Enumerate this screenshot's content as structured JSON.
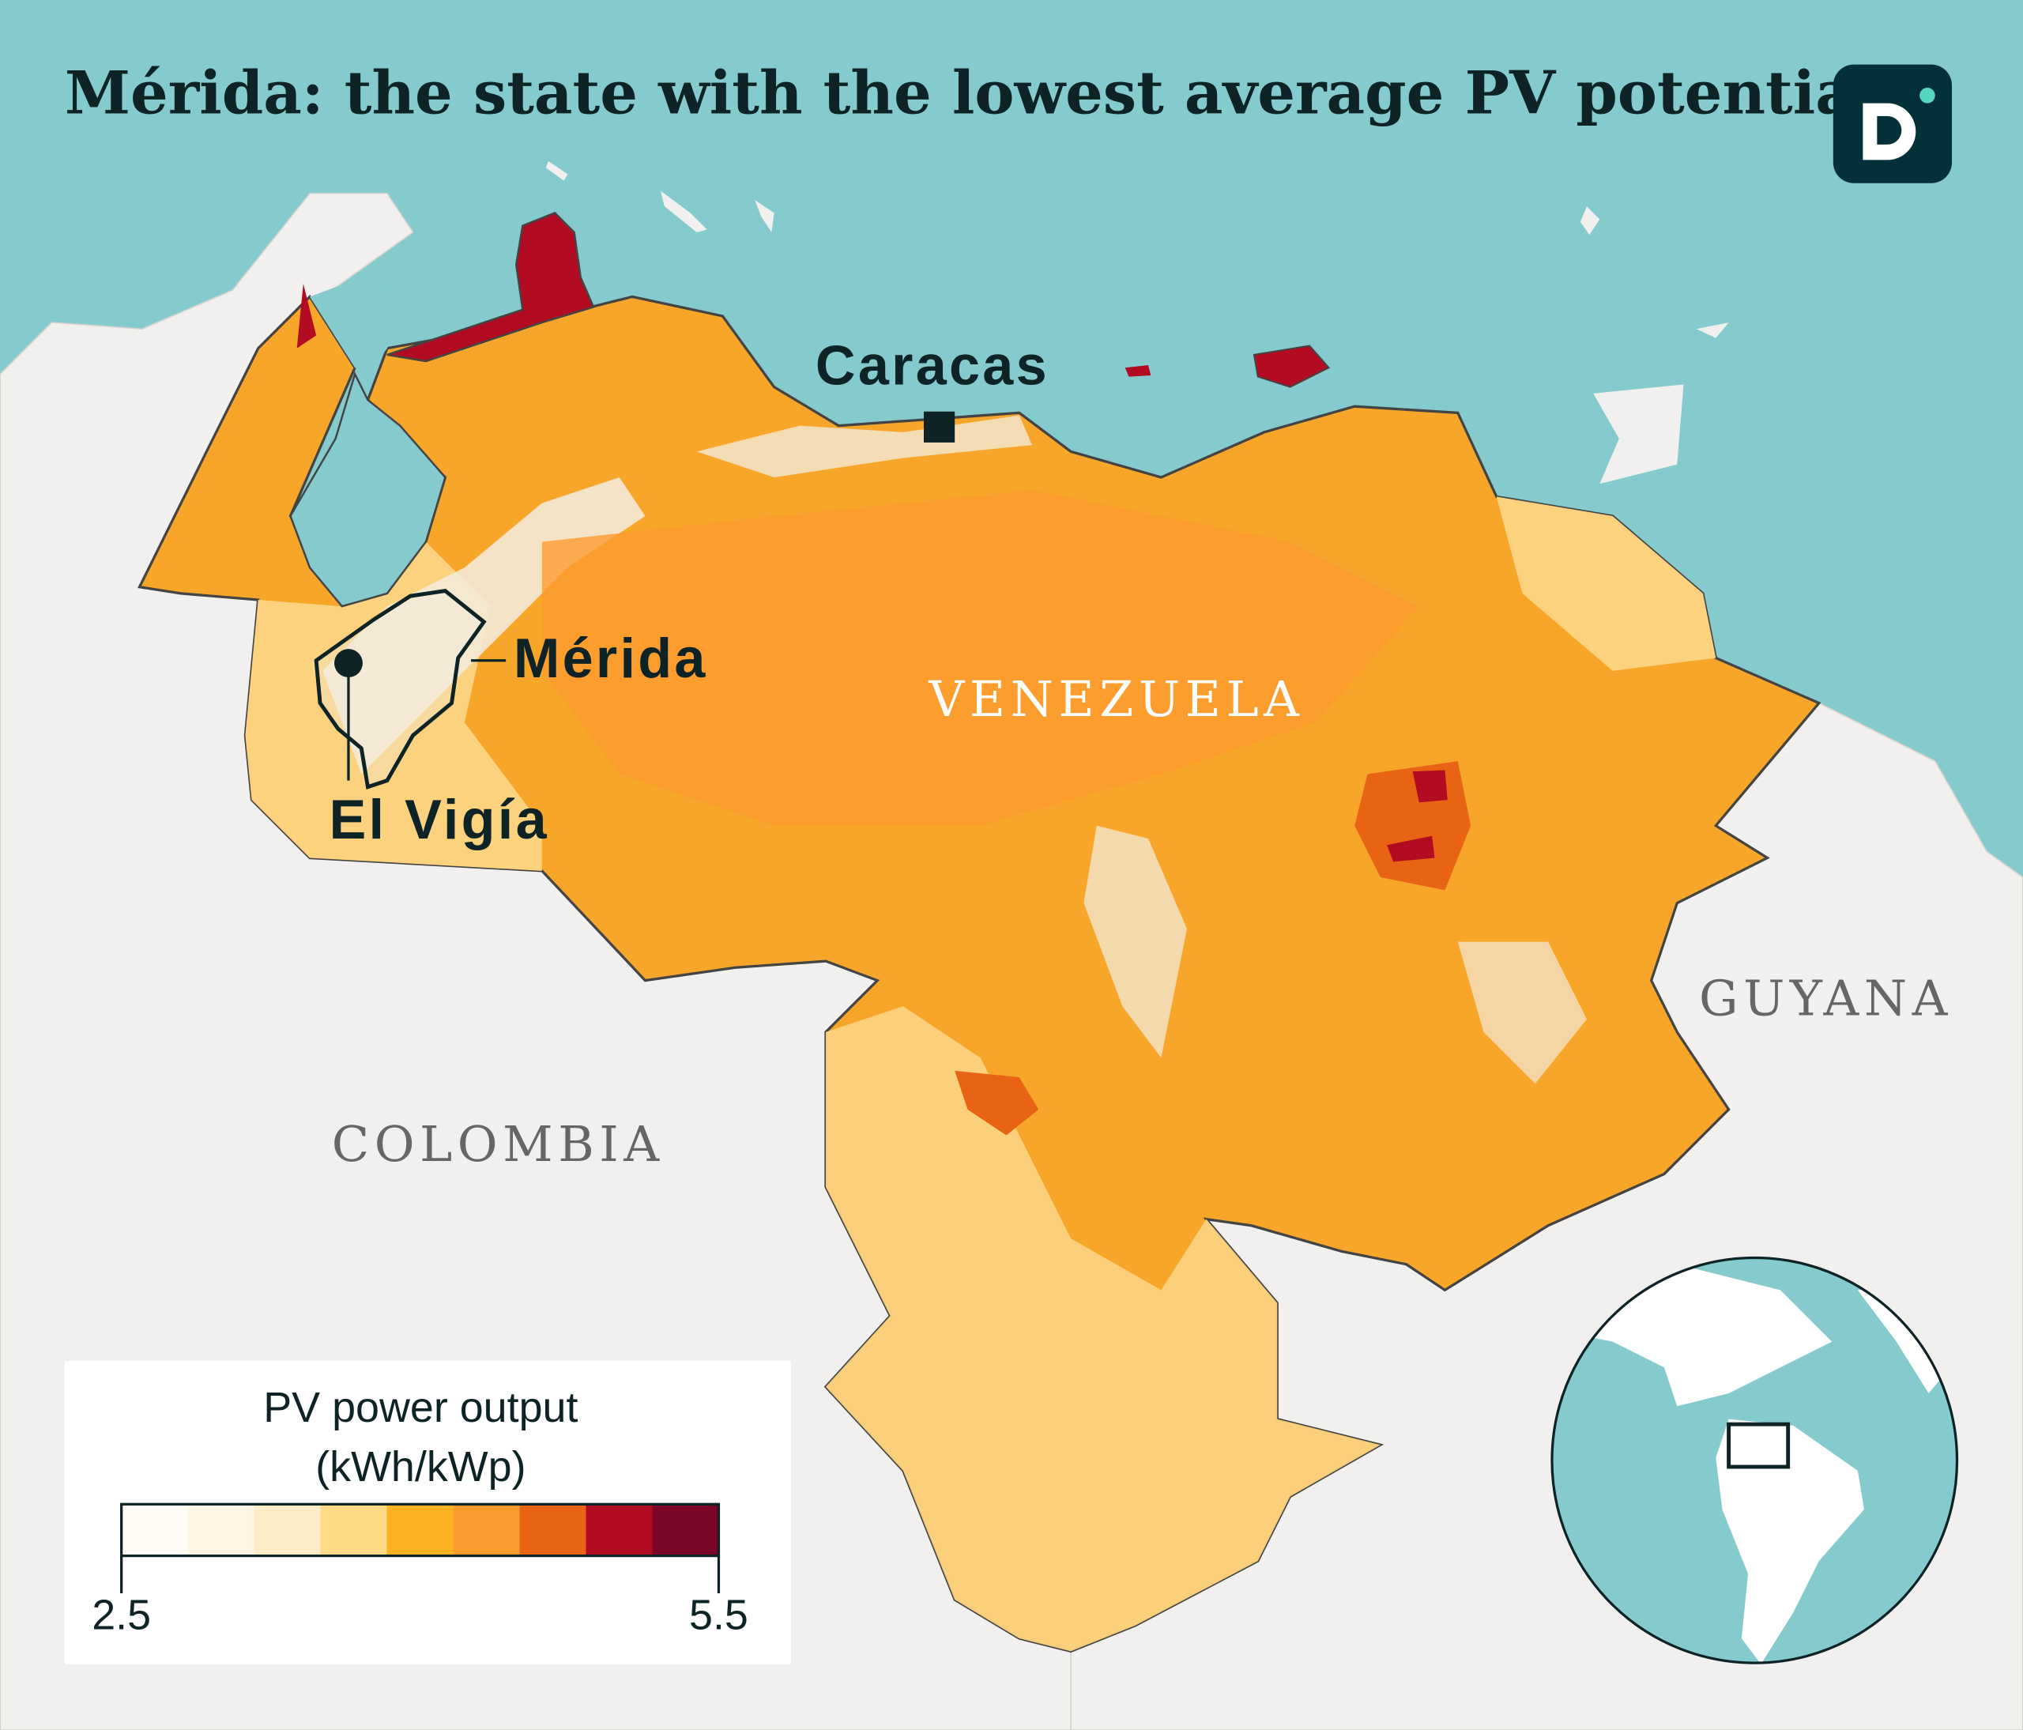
{
  "title": "Mérida: the state with the lowest average PV potential",
  "logo": {
    "letter": "D",
    "background": "#04303a",
    "dot_color": "#55d6c1"
  },
  "labels": {
    "capital": "Caracas",
    "state": "Mérida",
    "city": "El Vigía",
    "country": "VENEZUELA",
    "neighbor_west": "COLOMBIA",
    "neighbor_east": "GUYANA"
  },
  "legend": {
    "title_line1": "PV power output",
    "title_line2": "(kWh/kWp)",
    "min": "2.5",
    "max": "5.5",
    "colors": [
      "#fffbf5",
      "#fff5e3",
      "#ffecc6",
      "#ffd985",
      "#fdb321",
      "#fd9b2f",
      "#e86414",
      "#b20b22",
      "#7b0527"
    ]
  },
  "colors": {
    "sea": "#85cbce",
    "land": "#f2f1ef",
    "outline": "#3a3a3a",
    "text": "#0d2326"
  }
}
